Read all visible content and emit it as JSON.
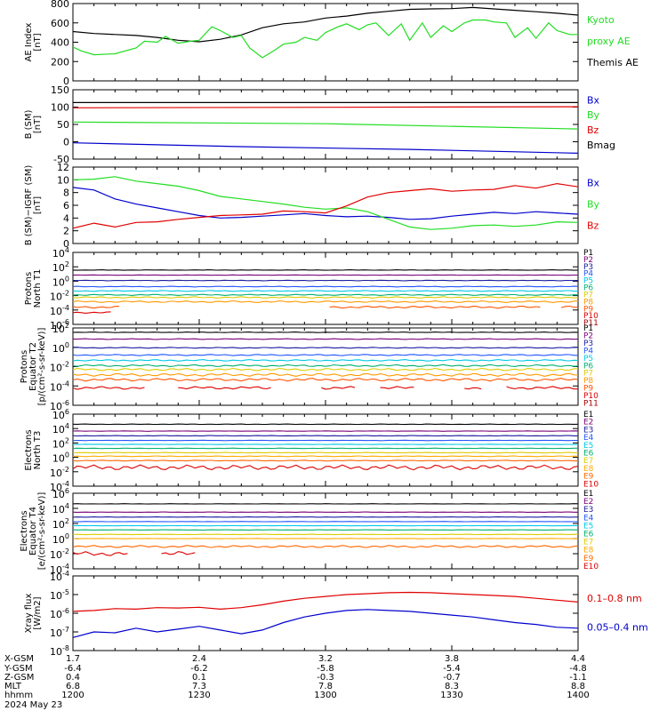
{
  "colors": {
    "black": "#000000",
    "red": "#e00000",
    "green": "#22dd22",
    "blue": "#0000cc",
    "p_palette": [
      "#000000",
      "#7a0077",
      "#1a1aa0",
      "#2255ff",
      "#00c8e8",
      "#00b070",
      "#ddcc00",
      "#ff9900",
      "#ff5500",
      "#dd0000",
      "#aa0000"
    ],
    "e_palette": [
      "#000000",
      "#7a0077",
      "#1a1aa0",
      "#2255ff",
      "#00c8e8",
      "#00b070",
      "#ddcc00",
      "#ffaa00",
      "#ff6600",
      "#dd0000",
      "#aa0000"
    ]
  },
  "chart_data": [
    {
      "type": "line",
      "panel": "ae",
      "ylabel_lines": [
        "AE Index",
        "[nT]"
      ],
      "yticks": [
        0,
        200,
        400,
        600,
        800
      ],
      "ylim": [
        0,
        800
      ],
      "scale": "linear",
      "legend": [
        {
          "text_lines": [
            "Kyoto",
            "proxy AE"
          ],
          "color": "green"
        },
        {
          "text_lines": [
            "Themis AE"
          ],
          "color": "black"
        }
      ],
      "series": [
        {
          "color": "black",
          "x": [
            0,
            5,
            10,
            15,
            20,
            25,
            30,
            35,
            40,
            45,
            50,
            55,
            60,
            65,
            70,
            75,
            80,
            85,
            90,
            95,
            100,
            105,
            110,
            115,
            120
          ],
          "y": [
            510,
            490,
            480,
            470,
            450,
            420,
            405,
            430,
            475,
            550,
            590,
            610,
            650,
            670,
            700,
            720,
            740,
            745,
            748,
            760,
            745,
            730,
            715,
            700,
            680
          ]
        },
        {
          "color": "green",
          "x": [
            0,
            2,
            5,
            10,
            15,
            17,
            20,
            22,
            25,
            28,
            30,
            33,
            35,
            38,
            40,
            42,
            45,
            48,
            50,
            53,
            55,
            58,
            60,
            63,
            65,
            68,
            70,
            72,
            75,
            78,
            80,
            83,
            85,
            88,
            90,
            93,
            95,
            98,
            100,
            103,
            105,
            108,
            110,
            113,
            115,
            118,
            120
          ],
          "y": [
            350,
            310,
            270,
            280,
            340,
            410,
            400,
            460,
            390,
            410,
            420,
            560,
            520,
            450,
            470,
            340,
            240,
            320,
            380,
            400,
            450,
            420,
            500,
            560,
            590,
            530,
            580,
            600,
            470,
            590,
            420,
            600,
            450,
            570,
            510,
            600,
            630,
            630,
            610,
            600,
            450,
            550,
            440,
            600,
            520,
            480,
            480
          ]
        }
      ]
    },
    {
      "type": "line",
      "panel": "bsm",
      "ylabel_lines": [
        "B (SM)",
        "[nT]"
      ],
      "yticks": [
        -50,
        0,
        50,
        100,
        150
      ],
      "ylim": [
        -50,
        150
      ],
      "scale": "linear",
      "legend": [
        {
          "text_lines": [
            "Bx"
          ],
          "color": "blue"
        },
        {
          "text_lines": [
            "By"
          ],
          "color": "green"
        },
        {
          "text_lines": [
            "Bz"
          ],
          "color": "red"
        },
        {
          "text_lines": [
            "Bmag"
          ],
          "color": "black"
        }
      ],
      "series": [
        {
          "color": "black",
          "x": [
            0,
            120
          ],
          "y": [
            113,
            113
          ]
        },
        {
          "color": "red",
          "x": [
            0,
            120
          ],
          "y": [
            98,
            101
          ]
        },
        {
          "color": "green",
          "x": [
            0,
            60,
            120
          ],
          "y": [
            57,
            52,
            37
          ]
        },
        {
          "color": "blue",
          "x": [
            0,
            40,
            80,
            120
          ],
          "y": [
            -3,
            -14,
            -22,
            -33
          ]
        }
      ]
    },
    {
      "type": "line",
      "panel": "bigrf",
      "ylabel_lines": [
        "B (SM)−IGRF (SM)",
        "[nT]"
      ],
      "yticks": [
        0,
        2,
        4,
        6,
        8,
        10,
        12
      ],
      "ylim": [
        0,
        12
      ],
      "scale": "linear",
      "legend": [
        {
          "text_lines": [
            "Bx"
          ],
          "color": "blue"
        },
        {
          "text_lines": [
            "By"
          ],
          "color": "green"
        },
        {
          "text_lines": [
            "Bz"
          ],
          "color": "red"
        }
      ],
      "series": [
        {
          "color": "blue",
          "x": [
            0,
            5,
            10,
            15,
            20,
            25,
            30,
            35,
            40,
            45,
            50,
            55,
            60,
            65,
            70,
            75,
            80,
            85,
            90,
            95,
            100,
            105,
            110,
            115,
            120
          ],
          "y": [
            8.8,
            8.4,
            7.0,
            6.2,
            5.6,
            5.0,
            4.4,
            4.0,
            4.1,
            4.3,
            4.5,
            4.7,
            4.4,
            4.2,
            4.3,
            4.1,
            3.8,
            3.9,
            4.3,
            4.6,
            4.9,
            4.7,
            5.0,
            4.8,
            4.6
          ]
        },
        {
          "color": "green",
          "x": [
            0,
            5,
            10,
            15,
            20,
            25,
            30,
            35,
            40,
            45,
            50,
            55,
            60,
            65,
            70,
            75,
            80,
            85,
            90,
            95,
            100,
            105,
            110,
            115,
            120
          ],
          "y": [
            10.0,
            10.1,
            10.5,
            9.8,
            9.4,
            9.0,
            8.3,
            7.4,
            7.0,
            6.6,
            6.2,
            5.7,
            5.4,
            5.6,
            5.0,
            3.8,
            2.6,
            2.2,
            2.4,
            2.8,
            2.9,
            2.7,
            2.9,
            3.4,
            3.3
          ]
        },
        {
          "color": "red",
          "x": [
            0,
            5,
            10,
            15,
            20,
            25,
            30,
            35,
            40,
            45,
            50,
            55,
            60,
            65,
            70,
            75,
            80,
            85,
            90,
            95,
            100,
            105,
            110,
            115,
            120
          ],
          "y": [
            2.4,
            3.2,
            2.6,
            3.3,
            3.4,
            3.8,
            4.1,
            4.4,
            4.5,
            4.6,
            5.1,
            5.0,
            4.8,
            5.9,
            7.3,
            8.0,
            8.3,
            8.6,
            8.2,
            8.4,
            8.5,
            9.1,
            8.7,
            9.4,
            8.9
          ]
        }
      ]
    },
    {
      "type": "line",
      "panel": "pn1",
      "ylabel_lines": [
        "Protons",
        "North T1"
      ],
      "scale": "log",
      "ylim_exp": [
        -6,
        4
      ],
      "ytick_exps": [
        -6,
        -4,
        -2,
        0,
        2,
        4
      ],
      "palette": "p_palette",
      "legend_labels": [
        "P1",
        "P2",
        "P3",
        "P4",
        "P5",
        "P6",
        "P7",
        "P8",
        "P9",
        "P10",
        "P11"
      ],
      "series": [
        {
          "name": "P1",
          "level": 1.55,
          "amp": 0.03,
          "gaps": []
        },
        {
          "name": "P2",
          "level": 0.85,
          "amp": 0.03,
          "gaps": []
        },
        {
          "name": "P3",
          "level": 0.1,
          "amp": 0.04,
          "gaps": []
        },
        {
          "name": "P4",
          "level": -0.75,
          "amp": 0.05,
          "gaps": []
        },
        {
          "name": "P5",
          "level": -1.35,
          "amp": 0.06,
          "gaps": []
        },
        {
          "name": "P6",
          "level": -1.9,
          "amp": 0.08,
          "gaps": []
        },
        {
          "name": "P7",
          "level": -2.25,
          "amp": 0.1,
          "gaps": []
        },
        {
          "name": "P8",
          "level": -2.85,
          "amp": 0.12,
          "gaps": []
        },
        {
          "name": "P9",
          "level": -3.6,
          "amp": 0.15,
          "gaps": [
            [
              12,
              60
            ],
            [
              112,
              115
            ]
          ]
        },
        {
          "name": "P10",
          "level": -4.35,
          "amp": 0.1,
          "gaps": [
            [
              10,
              120
            ]
          ]
        },
        {
          "name": "P11",
          "level": -5.3,
          "amp": 0.1,
          "gaps": [
            [
              0,
              120
            ]
          ]
        }
      ]
    },
    {
      "type": "line",
      "panel": "pe2",
      "ylabel_lines": [
        "Protons",
        "Equator T2",
        "[p/(cm²-s-sr-keV)]"
      ],
      "scale": "log",
      "ylim_exp": [
        -6,
        2
      ],
      "ytick_exps": [
        -6,
        -4,
        -2,
        0,
        2
      ],
      "palette": "p_palette",
      "legend_labels": [
        "P1",
        "P2",
        "P3",
        "P4",
        "P5",
        "P6",
        "P7",
        "P8",
        "P9",
        "P10",
        "P11"
      ],
      "series": [
        {
          "name": "P1",
          "level": 1.55,
          "amp": 0.03,
          "gaps": []
        },
        {
          "name": "P2",
          "level": 0.85,
          "amp": 0.04,
          "gaps": []
        },
        {
          "name": "P3",
          "level": -0.05,
          "amp": 0.05,
          "gaps": []
        },
        {
          "name": "P4",
          "level": -0.8,
          "amp": 0.07,
          "gaps": []
        },
        {
          "name": "P5",
          "level": -1.35,
          "amp": 0.08,
          "gaps": []
        },
        {
          "name": "P6",
          "level": -1.9,
          "amp": 0.1,
          "gaps": []
        },
        {
          "name": "P7",
          "level": -2.3,
          "amp": 0.12,
          "gaps": []
        },
        {
          "name": "P8",
          "level": -2.85,
          "amp": 0.15,
          "gaps": []
        },
        {
          "name": "P9",
          "level": -3.35,
          "amp": 0.15,
          "gaps": []
        },
        {
          "name": "P10",
          "level": -4.2,
          "amp": 0.15,
          "gaps": [
            [
              18,
              24
            ],
            [
              48,
              58
            ],
            [
              68,
              72
            ],
            [
              82,
              92
            ],
            [
              98,
              102
            ]
          ]
        },
        {
          "name": "P11",
          "level": -5.3,
          "amp": 0.1,
          "gaps": [
            [
              0,
              120
            ]
          ]
        }
      ]
    },
    {
      "type": "line",
      "panel": "en3",
      "ylabel_lines": [
        "Electrons",
        "North T3"
      ],
      "scale": "log",
      "ylim_exp": [
        -4,
        6
      ],
      "ytick_exps": [
        -4,
        -2,
        0,
        2,
        4,
        6
      ],
      "palette": "e_palette",
      "legend_labels": [
        "E1",
        "E2",
        "E3",
        "E4",
        "E5",
        "E6",
        "E7",
        "E8",
        "E9",
        "E10"
      ],
      "series": [
        {
          "name": "E1",
          "level": 4.6,
          "amp": 0.03,
          "gaps": []
        },
        {
          "name": "E2",
          "level": 3.65,
          "amp": 0.03,
          "gaps": []
        },
        {
          "name": "E3",
          "level": 3.0,
          "amp": 0.03,
          "gaps": []
        },
        {
          "name": "E4",
          "level": 2.35,
          "amp": 0.03,
          "gaps": []
        },
        {
          "name": "E5",
          "level": 1.8,
          "amp": 0.03,
          "gaps": []
        },
        {
          "name": "E6",
          "level": 1.25,
          "amp": 0.03,
          "gaps": []
        },
        {
          "name": "E7",
          "level": 0.65,
          "amp": 0.04,
          "gaps": []
        },
        {
          "name": "E8",
          "level": 0.15,
          "amp": 0.05,
          "gaps": []
        },
        {
          "name": "E9",
          "level": -0.45,
          "amp": 0.06,
          "gaps": []
        },
        {
          "name": "E10",
          "level": -1.4,
          "amp": 0.35,
          "gaps": []
        }
      ]
    },
    {
      "type": "line",
      "panel": "ee4",
      "ylabel_lines": [
        "Electrons",
        "Equator T4",
        "[e/(cm²-s-sr-keV)]"
      ],
      "scale": "log",
      "ylim_exp": [
        -4,
        6
      ],
      "ytick_exps": [
        -4,
        -2,
        0,
        2,
        4,
        6
      ],
      "palette": "e_palette",
      "legend_labels": [
        "E1",
        "E2",
        "E3",
        "E4",
        "E5",
        "E6",
        "E7",
        "E8",
        "E9",
        "E10"
      ],
      "series": [
        {
          "name": "E1",
          "level": 4.6,
          "amp": 0.02,
          "gaps": []
        },
        {
          "name": "E2",
          "level": 3.5,
          "amp": 0.02,
          "gaps": []
        },
        {
          "name": "E3",
          "level": 2.85,
          "amp": 0.02,
          "gaps": []
        },
        {
          "name": "E4",
          "level": 2.25,
          "amp": 0.02,
          "gaps": []
        },
        {
          "name": "E5",
          "level": 1.7,
          "amp": 0.02,
          "gaps": []
        },
        {
          "name": "E6",
          "level": 1.15,
          "amp": 0.02,
          "gaps": []
        },
        {
          "name": "E7",
          "level": 0.55,
          "amp": 0.03,
          "gaps": []
        },
        {
          "name": "E8",
          "level": 0.0,
          "amp": 0.03,
          "gaps": []
        },
        {
          "name": "E9",
          "level": -1.05,
          "amp": 0.15,
          "gaps": []
        },
        {
          "name": "E10",
          "level": -2.0,
          "amp": 0.3,
          "gaps": [
            [
              14,
              20
            ],
            [
              30,
              120
            ]
          ]
        }
      ]
    },
    {
      "type": "line",
      "panel": "xray",
      "ylabel_lines": [
        "Xray flux",
        "[W/m2]"
      ],
      "scale": "log",
      "ylim_exp": [
        -8,
        -4
      ],
      "ytick_exps": [
        -8,
        -7,
        -6,
        -5,
        -4
      ],
      "legend": [
        {
          "text_lines": [
            "0.1–0.8 nm"
          ],
          "color": "red"
        },
        {
          "text_lines": [
            "0.05–0.4 nm"
          ],
          "color": "blue"
        }
      ],
      "series": [
        {
          "color": "red",
          "x": [
            0,
            5,
            10,
            15,
            20,
            25,
            30,
            35,
            40,
            45,
            50,
            55,
            60,
            65,
            70,
            75,
            80,
            85,
            90,
            95,
            100,
            105,
            110,
            115,
            120
          ],
          "y": [
            -5.9,
            -5.85,
            -5.75,
            -5.78,
            -5.7,
            -5.72,
            -5.68,
            -5.78,
            -5.7,
            -5.55,
            -5.35,
            -5.2,
            -5.1,
            -5.0,
            -4.95,
            -4.9,
            -4.88,
            -4.9,
            -4.95,
            -5.0,
            -5.05,
            -5.1,
            -5.2,
            -5.3,
            -5.4
          ]
        },
        {
          "color": "blue",
          "x": [
            0,
            5,
            10,
            15,
            20,
            25,
            30,
            35,
            40,
            45,
            50,
            55,
            60,
            65,
            70,
            75,
            80,
            85,
            90,
            95,
            100,
            105,
            110,
            115,
            120
          ],
          "y": [
            -7.3,
            -7.0,
            -7.05,
            -6.8,
            -7.0,
            -6.85,
            -6.7,
            -6.9,
            -7.1,
            -6.9,
            -6.5,
            -6.2,
            -6.0,
            -5.85,
            -5.8,
            -5.85,
            -5.9,
            -6.0,
            -6.1,
            -6.2,
            -6.35,
            -6.5,
            -6.6,
            -6.75,
            -6.8
          ]
        }
      ]
    }
  ],
  "x_axis": {
    "row_labels": [
      "X-GSM",
      "Y-GSM",
      "Z-GSM",
      "MLT",
      "hhmm"
    ],
    "date_label": "2024 May 23",
    "ticks": [
      {
        "x": 0,
        "values": [
          "1.7",
          "-6.4",
          "0.4",
          "6.8",
          "1200"
        ]
      },
      {
        "x": 30,
        "values": [
          "2.4",
          "-6.2",
          "0.1",
          "7.3",
          "1230"
        ]
      },
      {
        "x": 60,
        "values": [
          "3.2",
          "-5.8",
          "-0.3",
          "7.8",
          "1300"
        ]
      },
      {
        "x": 90,
        "values": [
          "3.8",
          "-5.4",
          "-0.7",
          "8.3",
          "1330"
        ]
      },
      {
        "x": 120,
        "values": [
          "4.4",
          "-4.8",
          "-1.1",
          "8.8",
          "1400"
        ]
      }
    ]
  }
}
